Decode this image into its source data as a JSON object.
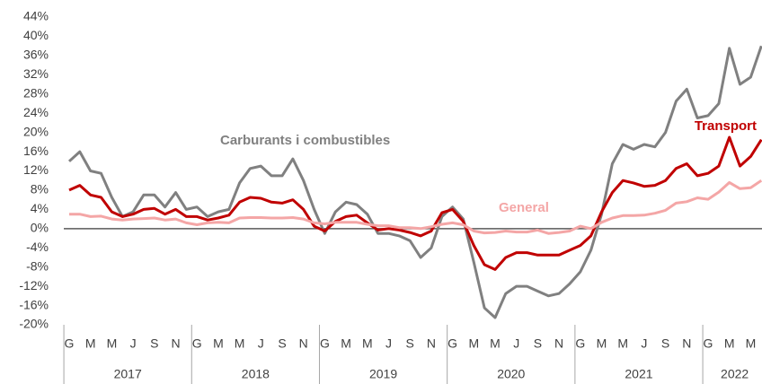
{
  "chart_data": {
    "type": "line",
    "categories": [
      "G",
      null,
      "M",
      null,
      "M",
      null,
      "J",
      null,
      "S",
      null,
      "N",
      null,
      "G",
      null,
      "M",
      null,
      "M",
      null,
      "J",
      null,
      "S",
      null,
      "N",
      null,
      "G",
      null,
      "M",
      null,
      "M",
      null,
      "J",
      null,
      "S",
      null,
      "N",
      null,
      "G",
      null,
      "M",
      null,
      "M",
      null,
      "J",
      null,
      "S",
      null,
      "N",
      null,
      "G",
      null,
      "M",
      null,
      "M",
      null,
      "J",
      null,
      "S",
      null,
      "N",
      null,
      "G",
      null,
      "M",
      null,
      "M",
      null
    ],
    "years": [
      "2017",
      "2018",
      "2019",
      "2020",
      "2021",
      "2022"
    ],
    "series": [
      {
        "name": "Carburants i combustibles",
        "color": "#808080",
        "values": [
          14,
          16,
          12,
          11.5,
          6.5,
          2.5,
          3.5,
          7,
          7,
          4.5,
          7.5,
          4,
          4.5,
          2.5,
          3.5,
          4,
          9.5,
          12.5,
          13,
          11,
          11,
          14.5,
          10,
          4,
          -1,
          3.5,
          5.5,
          5,
          3,
          -1,
          -1,
          -1.5,
          -2.5,
          -6,
          -4,
          2.5,
          4.5,
          2,
          -7,
          -16.5,
          -18.5,
          -13.5,
          -12,
          -12,
          -13,
          -14,
          -13.5,
          -11.5,
          -9,
          -4.5,
          3,
          13.5,
          17.5,
          16.5,
          17.5,
          17,
          20,
          26.5,
          29,
          23,
          23.5,
          26,
          37.5,
          30,
          31.5,
          38
        ]
      },
      {
        "name": "Transport",
        "color": "#c00000",
        "values": [
          8,
          9,
          7,
          6.5,
          3.5,
          2.5,
          3,
          4,
          4.2,
          3,
          4,
          2.5,
          2.5,
          1.8,
          2.2,
          2.8,
          5.5,
          6.5,
          6.3,
          5.5,
          5.3,
          6,
          4,
          0.5,
          -0.5,
          1.5,
          2.5,
          2.8,
          1.2,
          -0.3,
          0,
          -0.3,
          -0.8,
          -1.5,
          -0.5,
          3.3,
          4,
          1.5,
          -3.5,
          -7.5,
          -8.5,
          -6,
          -5,
          -5,
          -5.5,
          -5.5,
          -5.5,
          -4.5,
          -3.5,
          -1.5,
          3.5,
          7.5,
          10,
          9.5,
          8.8,
          9,
          10,
          12.5,
          13.5,
          11,
          11.5,
          13,
          19,
          13,
          15,
          18.5
        ]
      },
      {
        "name": "General",
        "color": "#f4a6a6",
        "values": [
          3,
          3,
          2.5,
          2.6,
          2,
          1.8,
          2,
          2.1,
          2.2,
          1.8,
          2,
          1.2,
          0.8,
          1.2,
          1.3,
          1.2,
          2.2,
          2.3,
          2.3,
          2.2,
          2.2,
          2.3,
          2,
          1.2,
          1,
          1.3,
          1.3,
          1.3,
          0.9,
          0.6,
          0.6,
          0.2,
          0.2,
          0,
          0.4,
          0.9,
          1.2,
          0.8,
          -0.5,
          -0.9,
          -0.8,
          -0.5,
          -0.7,
          -0.7,
          -0.3,
          -1,
          -0.8,
          -0.5,
          0.5,
          0,
          1.3,
          2.2,
          2.7,
          2.7,
          2.8,
          3.2,
          3.8,
          5.3,
          5.6,
          6.4,
          6.1,
          7.6,
          9.6,
          8.3,
          8.5,
          10
        ]
      }
    ],
    "ylim": [
      -20,
      44
    ],
    "yticks": [
      {
        "value": -20,
        "label": "-20%"
      },
      {
        "value": -16,
        "label": "-16%"
      },
      {
        "value": -12,
        "label": "-12%"
      },
      {
        "value": -8,
        "label": "-8%"
      },
      {
        "value": -4,
        "label": "-4%"
      },
      {
        "value": 0,
        "label": "0%"
      },
      {
        "value": 4,
        "label": "4%"
      },
      {
        "value": 8,
        "label": "8%"
      },
      {
        "value": 12,
        "label": "12%"
      },
      {
        "value": 16,
        "label": "16%"
      },
      {
        "value": 20,
        "label": "20%"
      },
      {
        "value": 24,
        "label": "24%"
      },
      {
        "value": 28,
        "label": "28%"
      },
      {
        "value": 32,
        "label": "32%"
      },
      {
        "value": 36,
        "label": "36%"
      },
      {
        "value": 40,
        "label": "40%"
      },
      {
        "value": 44,
        "label": "44%"
      }
    ],
    "grid": false
  }
}
